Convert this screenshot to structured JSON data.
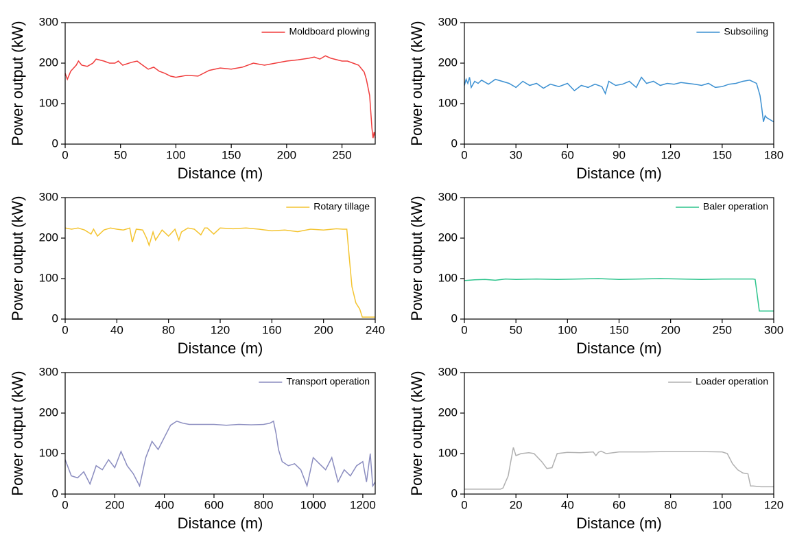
{
  "chart_data": [
    {
      "type": "line",
      "xlabel": "Distance (m)",
      "ylabel": "Power output (kW)",
      "legend": "upper right",
      "x": [
        0,
        2,
        5,
        10,
        12,
        15,
        20,
        25,
        28,
        35,
        40,
        45,
        48,
        52,
        60,
        65,
        70,
        75,
        80,
        85,
        90,
        95,
        100,
        110,
        120,
        130,
        140,
        150,
        160,
        170,
        180,
        190,
        200,
        210,
        220,
        225,
        230,
        235,
        240,
        250,
        255,
        260,
        265,
        270,
        272,
        275,
        277,
        278,
        279,
        280
      ],
      "series": [
        {
          "name": "Moldboard plowing",
          "color": "#f03c3c",
          "values": [
            175,
            160,
            180,
            195,
            205,
            195,
            192,
            200,
            210,
            205,
            200,
            200,
            205,
            195,
            202,
            205,
            195,
            185,
            190,
            180,
            175,
            168,
            165,
            170,
            168,
            182,
            188,
            185,
            190,
            200,
            195,
            200,
            205,
            208,
            212,
            215,
            210,
            218,
            212,
            205,
            205,
            200,
            195,
            178,
            160,
            120,
            40,
            15,
            30,
            15
          ]
        }
      ],
      "xlim": [
        0,
        280
      ],
      "ylim": [
        0,
        300
      ],
      "xticks": [
        0,
        50,
        100,
        150,
        200,
        250
      ],
      "yticks": [
        0,
        100,
        200,
        300
      ]
    },
    {
      "type": "line",
      "xlabel": "Distance (m)",
      "ylabel": "Power output (kW)",
      "legend": "upper right",
      "x": [
        0,
        1,
        2,
        3,
        4,
        6,
        8,
        10,
        14,
        18,
        22,
        26,
        30,
        34,
        38,
        42,
        46,
        50,
        55,
        60,
        64,
        68,
        72,
        76,
        80,
        82,
        84,
        88,
        92,
        96,
        100,
        103,
        106,
        110,
        114,
        118,
        122,
        126,
        130,
        134,
        138,
        142,
        146,
        150,
        154,
        158,
        162,
        166,
        170,
        172,
        173,
        174,
        175,
        176,
        178,
        180
      ],
      "series": [
        {
          "name": "Subsoiling",
          "color": "#3a8fd1",
          "values": [
            145,
            160,
            150,
            165,
            140,
            155,
            150,
            158,
            148,
            160,
            155,
            150,
            140,
            155,
            145,
            150,
            138,
            148,
            142,
            150,
            132,
            145,
            140,
            148,
            142,
            125,
            155,
            145,
            148,
            155,
            140,
            165,
            150,
            155,
            145,
            150,
            148,
            152,
            150,
            148,
            145,
            150,
            140,
            142,
            148,
            150,
            155,
            158,
            150,
            120,
            90,
            55,
            70,
            65,
            60,
            55
          ]
        }
      ],
      "xlim": [
        0,
        180
      ],
      "ylim": [
        0,
        300
      ],
      "xticks": [
        0,
        30,
        60,
        90,
        120,
        150,
        180
      ],
      "yticks": [
        0,
        100,
        200,
        300
      ]
    },
    {
      "type": "line",
      "xlabel": "Distance (m)",
      "ylabel": "Power output (kW)",
      "legend": "upper right",
      "x": [
        0,
        5,
        10,
        15,
        20,
        22,
        25,
        30,
        35,
        40,
        45,
        50,
        52,
        55,
        60,
        63,
        65,
        68,
        70,
        75,
        80,
        85,
        88,
        90,
        95,
        100,
        105,
        108,
        110,
        115,
        120,
        130,
        140,
        150,
        160,
        170,
        180,
        190,
        200,
        210,
        215,
        218,
        220,
        222,
        225,
        228,
        230,
        235,
        240
      ],
      "series": [
        {
          "name": "Rotary tillage",
          "color": "#f4c430",
          "values": [
            225,
            222,
            225,
            220,
            210,
            222,
            205,
            220,
            225,
            222,
            220,
            225,
            190,
            222,
            220,
            200,
            182,
            215,
            195,
            220,
            205,
            222,
            195,
            215,
            225,
            222,
            208,
            225,
            225,
            210,
            225,
            223,
            225,
            222,
            218,
            220,
            216,
            222,
            220,
            223,
            222,
            222,
            150,
            80,
            40,
            25,
            5,
            5,
            5
          ]
        }
      ],
      "xlim": [
        0,
        240
      ],
      "ylim": [
        0,
        300
      ],
      "xticks": [
        0,
        40,
        80,
        120,
        160,
        200,
        240
      ],
      "yticks": [
        0,
        100,
        200,
        300
      ]
    },
    {
      "type": "line",
      "xlabel": "Distance (m)",
      "ylabel": "Power output (kW)",
      "legend": "upper right",
      "x": [
        0,
        10,
        20,
        30,
        40,
        50,
        70,
        90,
        110,
        130,
        150,
        170,
        190,
        210,
        230,
        250,
        270,
        280,
        282,
        284,
        286,
        290,
        300
      ],
      "series": [
        {
          "name": "Baler operation",
          "color": "#2cc48c",
          "values": [
            95,
            97,
            98,
            96,
            99,
            98,
            99,
            98,
            99,
            100,
            98,
            99,
            100,
            99,
            98,
            99,
            99,
            99,
            98,
            60,
            20,
            20,
            20
          ]
        }
      ],
      "xlim": [
        0,
        300
      ],
      "ylim": [
        0,
        300
      ],
      "xticks": [
        0,
        50,
        100,
        150,
        200,
        250,
        300
      ],
      "yticks": [
        0,
        100,
        200,
        300
      ]
    },
    {
      "type": "line",
      "xlabel": "Distance (m)",
      "ylabel": "Power output (kW)",
      "legend": "upper right",
      "x": [
        0,
        25,
        50,
        75,
        100,
        125,
        150,
        175,
        200,
        225,
        250,
        275,
        300,
        325,
        350,
        375,
        400,
        425,
        450,
        475,
        500,
        550,
        600,
        650,
        700,
        750,
        800,
        825,
        840,
        850,
        860,
        875,
        900,
        925,
        950,
        975,
        1000,
        1025,
        1050,
        1075,
        1100,
        1125,
        1150,
        1175,
        1200,
        1215,
        1230,
        1240,
        1250
      ],
      "series": [
        {
          "name": "Transport operation",
          "color": "#8a8cbf",
          "values": [
            85,
            45,
            40,
            55,
            25,
            70,
            60,
            85,
            65,
            105,
            70,
            50,
            20,
            90,
            130,
            110,
            140,
            170,
            180,
            175,
            172,
            172,
            172,
            170,
            172,
            171,
            172,
            175,
            180,
            150,
            110,
            80,
            70,
            75,
            60,
            20,
            90,
            75,
            60,
            90,
            30,
            60,
            45,
            70,
            80,
            30,
            100,
            20,
            30
          ]
        }
      ],
      "xlim": [
        0,
        1250
      ],
      "ylim": [
        0,
        300
      ],
      "xticks": [
        0,
        200,
        400,
        600,
        800,
        1000,
        1200
      ],
      "yticks": [
        0,
        100,
        200,
        300
      ]
    },
    {
      "type": "line",
      "xlabel": "Distance (m)",
      "ylabel": "Power output (kW)",
      "legend": "upper right",
      "x": [
        0,
        5,
        10,
        14,
        15,
        16,
        17,
        18,
        19,
        20,
        22,
        25,
        27,
        30,
        32,
        34,
        36,
        40,
        45,
        50,
        51,
        52,
        53,
        55,
        60,
        70,
        80,
        90,
        100,
        102,
        104,
        106,
        108,
        110,
        111,
        112,
        115,
        120
      ],
      "series": [
        {
          "name": "Loader operation",
          "color": "#b0b0b0",
          "values": [
            12,
            12,
            12,
            12,
            15,
            30,
            45,
            80,
            115,
            95,
            100,
            102,
            100,
            80,
            63,
            65,
            100,
            103,
            102,
            104,
            95,
            103,
            106,
            100,
            104,
            104,
            105,
            105,
            104,
            100,
            75,
            60,
            52,
            50,
            20,
            20,
            18,
            18
          ]
        }
      ],
      "xlim": [
        0,
        120
      ],
      "ylim": [
        0,
        300
      ],
      "xticks": [
        0,
        20,
        40,
        60,
        80,
        100,
        120
      ],
      "yticks": [
        0,
        100,
        200,
        300
      ]
    }
  ]
}
